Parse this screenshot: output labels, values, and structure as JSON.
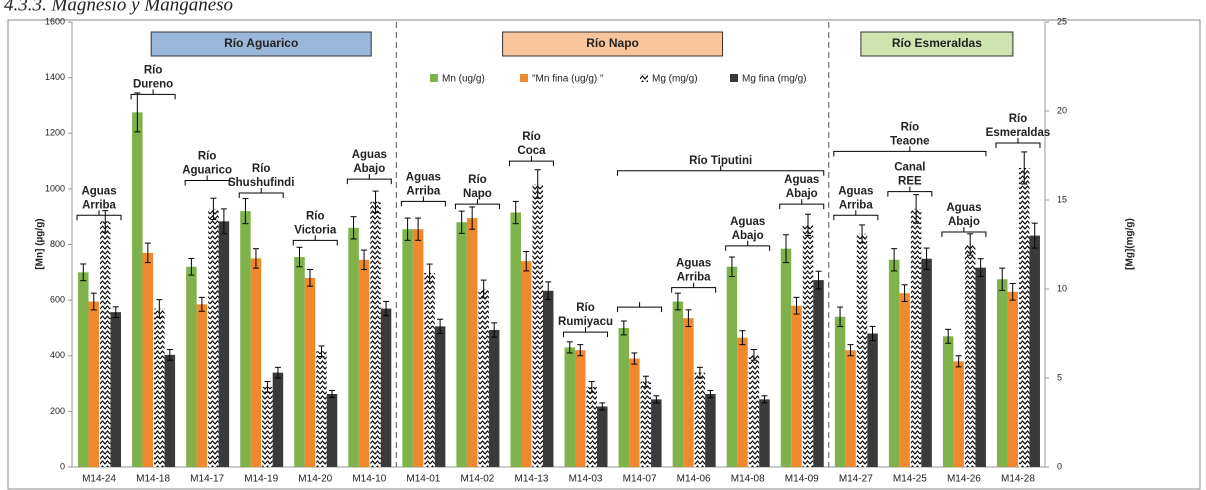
{
  "heading": "4.3.3. Magnesio y Manganeso",
  "chart_data": {
    "type": "bar",
    "categories": [
      "M14-24",
      "M14-18",
      "M14-17",
      "M14-19",
      "M14-20",
      "M14-10",
      "M14-01",
      "M14-02",
      "M14-13",
      "M14-03",
      "M14-07",
      "M14-06",
      "M14-08",
      "M14-09",
      "M14-27",
      "M14-25",
      "M14-26",
      "M14-28"
    ],
    "ylabel": "[Mn] (µg/g)",
    "y2label": "[Mg](mg/g)",
    "ylim": [
      0,
      1600
    ],
    "yticks": [
      0,
      200,
      400,
      600,
      800,
      1000,
      1200,
      1400,
      1600
    ],
    "y2lim": [
      0,
      25
    ],
    "y2ticks": [
      0,
      5,
      10,
      15,
      20,
      25
    ],
    "legend": "top",
    "series": [
      {
        "name": "Mn (ug/g)",
        "color": "#7fb24a",
        "values": [
          700,
          1275,
          720,
          920,
          755,
          860,
          855,
          880,
          915,
          430,
          500,
          595,
          720,
          785,
          540,
          745,
          470,
          675
        ],
        "errors": [
          30,
          70,
          30,
          45,
          35,
          40,
          40,
          40,
          40,
          20,
          25,
          30,
          35,
          50,
          35,
          40,
          25,
          40
        ]
      },
      {
        "name": "\"Mn fina (ug/g) \"",
        "color": "#f0892e",
        "values": [
          595,
          770,
          585,
          750,
          680,
          745,
          855,
          895,
          740,
          420,
          390,
          535,
          465,
          580,
          420,
          625,
          380,
          630
        ],
        "errors": [
          30,
          35,
          25,
          35,
          30,
          35,
          40,
          40,
          35,
          20,
          20,
          30,
          25,
          30,
          20,
          30,
          20,
          30
        ]
      },
      {
        "name": "Mg (mg/g)",
        "color": "#000000",
        "hatch": true,
        "axis": "y2",
        "values": [
          13.8,
          8.9,
          14.5,
          4.5,
          6.5,
          14.9,
          10.9,
          10,
          15.9,
          4.5,
          4.8,
          5.3,
          6.3,
          13.6,
          13.1,
          14.5,
          12.5,
          16.8
        ],
        "errors": [
          0.6,
          0.5,
          0.6,
          0.3,
          0.3,
          0.6,
          0.5,
          0.5,
          0.8,
          0.3,
          0.3,
          0.3,
          0.3,
          0.6,
          0.5,
          0.8,
          0.6,
          0.9
        ]
      },
      {
        "name": "Mg fina (mg/g)",
        "color": "#3a3a3a",
        "axis": "y2",
        "values": [
          8.7,
          6.3,
          13.8,
          5.3,
          4.1,
          8.9,
          7.9,
          7.7,
          9.9,
          3.4,
          3.8,
          4.1,
          3.8,
          10.5,
          7.5,
          11.7,
          11.2,
          13
        ],
        "errors": [
          0.3,
          0.3,
          0.7,
          0.3,
          0.2,
          0.4,
          0.4,
          0.4,
          0.5,
          0.2,
          0.2,
          0.2,
          0.2,
          0.5,
          0.4,
          0.6,
          0.5,
          0.7
        ]
      }
    ],
    "regions": [
      {
        "label": "Río Aguarico",
        "color": "#9ab7d9"
      },
      {
        "label": "Río Napo",
        "color": "#f9c49a"
      },
      {
        "label": "Río Esmeraldas",
        "color": "#cfe3b0"
      }
    ],
    "annotations": [
      {
        "lines": [
          "Aguas",
          "Arriba"
        ]
      },
      {
        "lines": [
          "Río",
          "Dureno"
        ]
      },
      {
        "lines": [
          "Río",
          "Aguarico"
        ]
      },
      {
        "lines": [
          "Río",
          "Shushufindi"
        ]
      },
      {
        "lines": [
          "Río",
          "Victoria"
        ]
      },
      {
        "lines": [
          "Aguas",
          "Abajo"
        ]
      },
      {
        "lines": [
          "Aguas",
          "Arriba"
        ]
      },
      {
        "lines": [
          "Río",
          "Napo"
        ]
      },
      {
        "lines": [
          "Río",
          "Coca"
        ]
      },
      {
        "lines": [
          "Río",
          "Rumiyacu"
        ]
      },
      {
        "lines": [
          "Aguas",
          "Arriba"
        ]
      },
      {
        "lines": [
          "Aguas",
          "Abajo"
        ]
      },
      {
        "lines": [
          "Aguas",
          "Abajo"
        ]
      },
      {
        "lines": [
          "Río  Tiputini"
        ]
      },
      {
        "lines": [
          "Aguas",
          "Arriba"
        ]
      },
      {
        "lines": [
          "Río",
          "Teaone"
        ]
      },
      {
        "lines": [
          "Canal",
          "REE"
        ]
      },
      {
        "lines": [
          "Aguas",
          "Abajo"
        ]
      },
      {
        "lines": [
          "Río",
          "Esmeraldas"
        ]
      }
    ]
  }
}
